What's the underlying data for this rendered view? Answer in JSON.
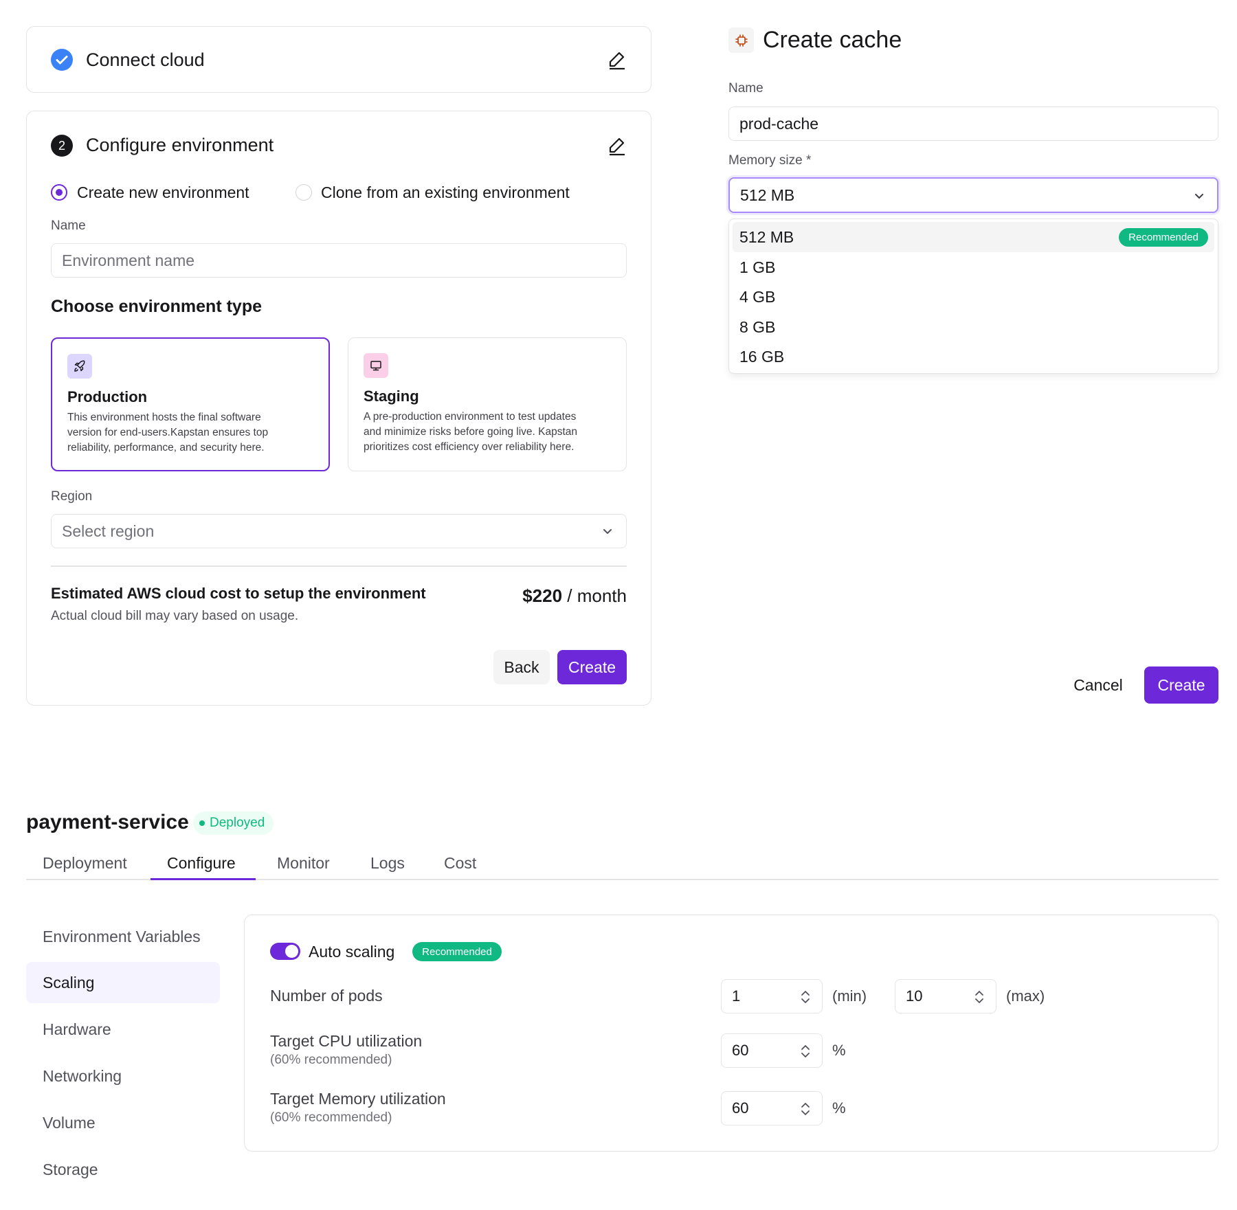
{
  "connect_card": {
    "title": "Connect cloud"
  },
  "configure_card": {
    "step_number": "2",
    "title": "Configure environment",
    "radio_options": [
      "Create new environment",
      "Clone from an existing environment"
    ],
    "selected_radio": 0,
    "name_label": "Name",
    "name_placeholder": "Environment name",
    "env_type_heading": "Choose environment type",
    "env_types": [
      {
        "title": "Production",
        "description": "This environment hosts the final software version for end-users.Kapstan ensures top reliability, performance, and security here.",
        "icon": "rocket-icon",
        "icon_bg": "#ddd6fe",
        "selected": true
      },
      {
        "title": "Staging",
        "description": "A pre-production environment to test updates and minimize risks before going live. Kapstan prioritizes cost efficiency over reliability here.",
        "icon": "monitor-icon",
        "icon_bg": "#fbcfe8",
        "selected": false
      }
    ],
    "region_label": "Region",
    "region_placeholder": "Select region",
    "cost_title": "Estimated AWS cloud cost to setup the environment",
    "cost_subtitle": "Actual cloud bill may vary based on usage.",
    "cost_amount": "$220",
    "cost_period": " / month",
    "back_label": "Back",
    "create_label": "Create"
  },
  "create_cache": {
    "title": "Create cache",
    "icon": "chip-icon",
    "name_label": "Name",
    "name_value": "prod-cache",
    "memory_label": "Memory size *",
    "memory_selected": "512 MB",
    "memory_options": [
      "512 MB",
      "1 GB",
      "4 GB",
      "8 GB",
      "16 GB"
    ],
    "recommended_badge": "Recommended",
    "cancel_label": "Cancel",
    "create_label": "Create"
  },
  "service": {
    "name": "payment-service",
    "status": "Deployed",
    "tabs": [
      "Deployment",
      "Configure",
      "Monitor",
      "Logs",
      "Cost"
    ],
    "active_tab": 1,
    "sidebar": [
      "Environment Variables",
      "Scaling",
      "Hardware",
      "Networking",
      "Volume",
      "Storage"
    ],
    "active_sidebar": 1,
    "scaling": {
      "auto_scaling_label": "Auto scaling",
      "auto_scaling_on": true,
      "recommended_badge": "Recommended",
      "pods_label": "Number of pods",
      "pods_min": "1",
      "pods_min_unit": "(min)",
      "pods_max": "10",
      "pods_max_unit": "(max)",
      "cpu_label": "Target CPU utilization",
      "cpu_hint": "(60% recommended)",
      "cpu_value": "60",
      "cpu_unit": "%",
      "memory_label": "Target Memory utilization",
      "memory_hint": "(60% recommended)",
      "memory_value": "60",
      "memory_unit": "%"
    }
  },
  "colors": {
    "accent": "#6d28d9",
    "check": "#3b82f6",
    "success": "#10b981",
    "border": "#e4e4e7"
  }
}
